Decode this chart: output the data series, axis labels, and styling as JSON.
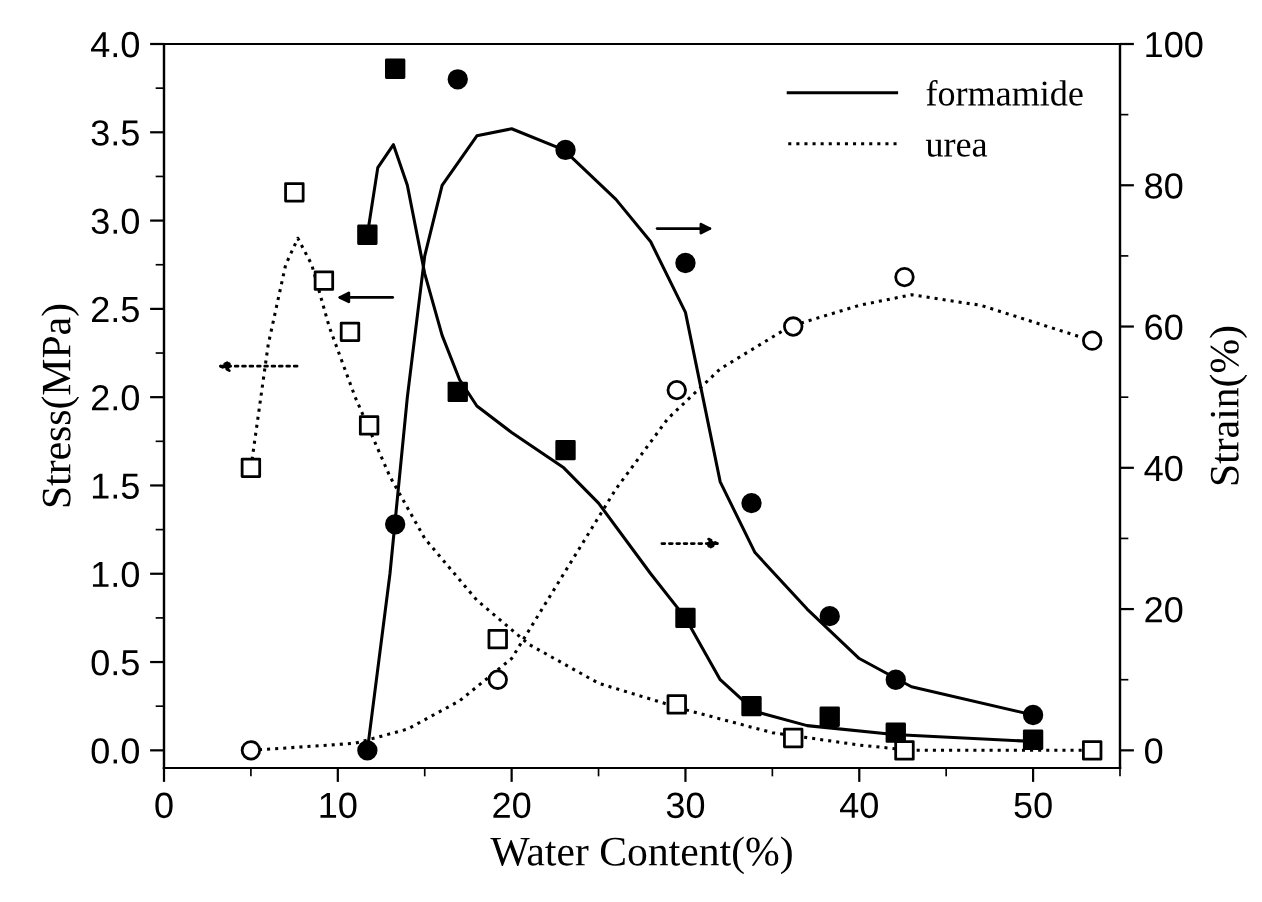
{
  "chart_data": {
    "type": "scatter",
    "xlabel": "Water Content(%)",
    "ylabel": "Stress(MPa)",
    "y2label": "Strain(%)",
    "xlim": [
      0,
      55
    ],
    "xticks": [
      0,
      10,
      20,
      30,
      40,
      50
    ],
    "ylim": [
      -0.1,
      4.0
    ],
    "yticks": [
      {
        "value": 0,
        "label": "0.0"
      },
      {
        "value": 0.5,
        "label": "0.5"
      },
      {
        "value": 1,
        "label": "1.0"
      },
      {
        "value": 1.5,
        "label": "1.5"
      },
      {
        "value": 2,
        "label": "2.0"
      },
      {
        "value": 2.5,
        "label": "2.5"
      },
      {
        "value": 3,
        "label": "3.0"
      },
      {
        "value": 3.5,
        "label": "3.5"
      },
      {
        "value": 4,
        "label": "4.0"
      }
    ],
    "y2lim": [
      -2.5,
      100
    ],
    "y2ticks": [
      0,
      20,
      40,
      60,
      80,
      100
    ],
    "grid": false,
    "legend": "top right",
    "series": [
      {
        "marker": "square",
        "color": "#000000",
        "x": [
          11.7,
          13.3,
          16.9,
          23.1,
          30.0,
          33.8,
          38.3,
          42.1,
          50.0
        ],
        "values": [
          2.92,
          3.86,
          2.03,
          1.7,
          0.75,
          0.25,
          0.19,
          0.1,
          0.06
        ]
      },
      {
        "marker": "circle",
        "color": "#000000",
        "axis": "y2",
        "x": [
          11.7,
          13.3,
          16.9,
          23.1,
          30.0,
          33.8,
          38.3,
          42.1,
          50.0
        ],
        "values": [
          0,
          32,
          95,
          85,
          69,
          35,
          19,
          10,
          5
        ]
      },
      {
        "marker": "square",
        "color": "#ffffff",
        "x": [
          5.0,
          7.5,
          9.2,
          10.7,
          11.8,
          19.2,
          29.5,
          36.2,
          42.6,
          53.4
        ],
        "values": [
          1.6,
          3.16,
          2.66,
          2.37,
          1.84,
          0.63,
          0.26,
          0.07,
          0.0,
          0.0
        ]
      },
      {
        "marker": "circle",
        "color": "#ffffff",
        "axis": "y2",
        "x": [
          5.0,
          19.2,
          29.5,
          36.2,
          42.6,
          53.4
        ],
        "values": [
          0,
          10,
          51,
          60,
          67,
          58
        ]
      },
      {
        "type": "line",
        "name": "formamide",
        "line_style": "solid",
        "color": "#000000",
        "x": [
          11.7,
          12.3,
          13.2,
          14,
          15,
          16,
          17,
          18,
          20,
          23,
          25,
          28,
          30,
          32,
          34,
          37,
          42,
          50
        ],
        "values": [
          2.92,
          3.3,
          3.43,
          3.2,
          2.7,
          2.35,
          2.1,
          1.95,
          1.8,
          1.6,
          1.4,
          1.0,
          0.75,
          0.4,
          0.22,
          0.14,
          0.09,
          0.05
        ]
      },
      {
        "type": "line",
        "line_style": "solid",
        "color": "#000000",
        "axis": "y2",
        "x": [
          11.7,
          13,
          14,
          15,
          16,
          18,
          20,
          23,
          26,
          28,
          30,
          31,
          32,
          34,
          37,
          40,
          43,
          50
        ],
        "values": [
          0,
          25,
          50,
          70,
          80,
          87,
          88,
          85,
          78,
          72,
          62,
          50,
          38,
          28,
          20,
          13,
          9,
          5
        ]
      },
      {
        "type": "line",
        "name": "urea",
        "line_style": "dotted",
        "color": "#000000",
        "x": [
          5,
          6,
          7,
          7.7,
          8.5,
          9.5,
          11,
          13,
          15,
          18,
          21,
          25,
          30,
          35,
          40,
          43,
          53.4
        ],
        "values": [
          1.6,
          2.3,
          2.75,
          2.9,
          2.75,
          2.4,
          2.0,
          1.55,
          1.2,
          0.85,
          0.6,
          0.38,
          0.23,
          0.1,
          0.03,
          0.0,
          0.0
        ]
      },
      {
        "type": "line",
        "line_style": "dotted",
        "color": "#000000",
        "axis": "y2",
        "x": [
          5,
          8,
          11,
          14,
          17,
          20,
          23,
          26,
          29,
          32,
          36,
          40,
          43,
          47,
          53.4
        ],
        "values": [
          0,
          0.5,
          1,
          3,
          7,
          13,
          25,
          37,
          47,
          54,
          60,
          63,
          64.5,
          63,
          58
        ]
      }
    ]
  }
}
